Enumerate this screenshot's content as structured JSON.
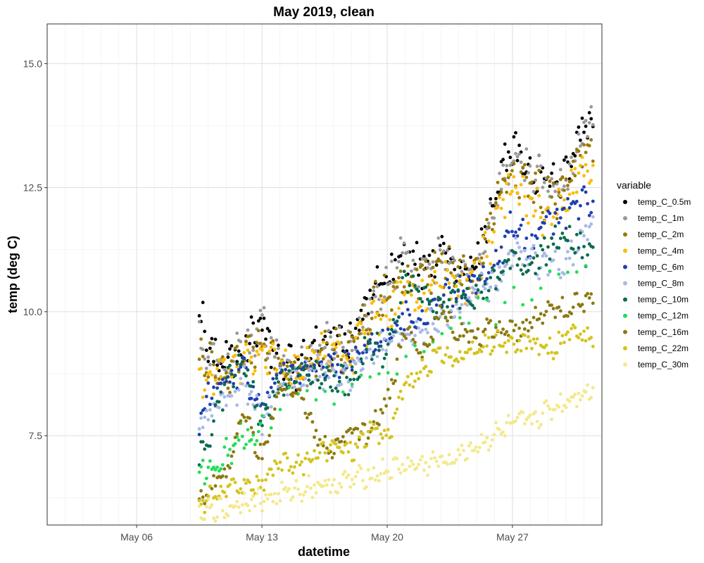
{
  "chart_data": {
    "type": "scatter",
    "title": "May 2019, clean",
    "xlabel": "datetime",
    "ylabel": "temp (deg C)",
    "xlim": [
      "2019-05-01",
      "2019-06-01"
    ],
    "ylim": [
      5.7,
      15.8
    ],
    "x_ticks": [
      "May 06",
      "May 13",
      "May 20",
      "May 27"
    ],
    "y_ticks": [
      "7.5",
      "10.0",
      "12.5",
      "15.0"
    ],
    "grid": true,
    "legend_title": "variable",
    "legend_position": "right",
    "x": [
      "2019-05-09",
      "2019-05-10",
      "2019-05-11",
      "2019-05-12",
      "2019-05-13",
      "2019-05-14",
      "2019-05-15",
      "2019-05-16",
      "2019-05-17",
      "2019-05-18",
      "2019-05-19",
      "2019-05-20",
      "2019-05-21",
      "2019-05-22",
      "2019-05-23",
      "2019-05-24",
      "2019-05-25",
      "2019-05-26",
      "2019-05-27",
      "2019-05-28",
      "2019-05-29",
      "2019-05-30",
      "2019-05-31"
    ],
    "series": [
      {
        "name": "temp_C_0.5m",
        "color": "#000000",
        "values": [
          11.0,
          9.2,
          9.0,
          9.3,
          9.8,
          8.9,
          8.9,
          9.3,
          9.5,
          9.4,
          10.3,
          10.7,
          11.2,
          10.9,
          11.2,
          10.9,
          10.9,
          12.5,
          13.2,
          12.9,
          12.6,
          12.7,
          13.9
        ]
      },
      {
        "name": "temp_C_1m",
        "color": "#999999",
        "values": [
          10.0,
          9.0,
          8.9,
          9.2,
          9.7,
          8.9,
          8.8,
          9.2,
          9.4,
          9.3,
          10.1,
          10.6,
          11.1,
          10.8,
          11.1,
          10.8,
          10.8,
          12.3,
          13.1,
          12.8,
          12.5,
          12.6,
          13.7
        ]
      },
      {
        "name": "temp_C_2m",
        "color": "#9a7a00",
        "values": [
          9.3,
          8.9,
          8.8,
          9.1,
          9.5,
          8.8,
          8.8,
          9.1,
          9.3,
          9.2,
          10.0,
          10.4,
          10.8,
          10.6,
          11.0,
          10.7,
          10.7,
          12.1,
          12.9,
          12.5,
          12.3,
          12.4,
          13.4
        ]
      },
      {
        "name": "temp_C_4m",
        "color": "#fbbc05",
        "values": [
          8.8,
          8.6,
          8.7,
          9.0,
          9.3,
          8.8,
          8.7,
          9.0,
          9.2,
          9.1,
          9.7,
          10.0,
          10.4,
          10.3,
          10.6,
          10.5,
          10.7,
          11.7,
          12.6,
          12.1,
          12.0,
          12.2,
          12.9
        ]
      },
      {
        "name": "temp_C_6m",
        "color": "#1f3fb0",
        "values": [
          7.3,
          8.3,
          8.5,
          8.8,
          8.1,
          8.7,
          8.7,
          8.9,
          9.0,
          9.0,
          9.4,
          9.5,
          9.9,
          9.9,
          10.3,
          10.4,
          10.6,
          10.8,
          11.9,
          11.3,
          11.8,
          12.0,
          12.3
        ]
      },
      {
        "name": "temp_C_8m",
        "color": "#a8b8e8",
        "values": [
          7.4,
          8.0,
          8.3,
          8.6,
          7.8,
          8.6,
          8.6,
          8.8,
          8.7,
          8.7,
          9.2,
          9.3,
          9.5,
          9.7,
          9.8,
          10.0,
          10.4,
          10.6,
          11.3,
          11.1,
          10.9,
          11.0,
          11.6
        ]
      },
      {
        "name": "temp_C_10m",
        "color": "#0b6b4f",
        "values": [
          6.9,
          7.4,
          8.6,
          9.0,
          7.7,
          8.6,
          8.8,
          8.8,
          8.6,
          8.6,
          9.4,
          9.1,
          10.6,
          10.4,
          10.0,
          10.4,
          10.4,
          10.6,
          11.1,
          10.9,
          11.3,
          11.5,
          11.2
        ]
      },
      {
        "name": "temp_C_12m",
        "color": "#22dd55",
        "values": [
          6.5,
          6.8,
          7.2,
          7.5,
          7.6,
          8.0,
          8.2,
          8.4,
          8.4,
          8.5,
          8.7,
          8.9,
          9.1,
          9.3,
          9.5,
          9.7,
          9.9,
          10.1,
          10.2,
          10.4,
          10.6,
          10.8,
          11.0
        ]
      },
      {
        "name": "temp_C_16m",
        "color": "#8a7a10",
        "values": [
          6.2,
          6.4,
          6.8,
          8.0,
          7.0,
          8.5,
          8.5,
          7.5,
          7.2,
          7.6,
          7.5,
          8.2,
          9.6,
          9.2,
          10.0,
          9.6,
          9.5,
          9.7,
          9.6,
          9.8,
          10.1,
          10.0,
          10.2
        ]
      },
      {
        "name": "temp_C_22m",
        "color": "#d4c41e",
        "values": [
          6.1,
          6.2,
          6.4,
          6.6,
          6.5,
          6.9,
          6.9,
          7.1,
          7.3,
          7.2,
          7.6,
          7.5,
          8.5,
          8.8,
          9.2,
          9.0,
          9.2,
          9.4,
          9.3,
          9.4,
          9.2,
          9.5,
          9.5
        ]
      },
      {
        "name": "temp_C_30m",
        "color": "#f3e98a",
        "values": [
          5.9,
          6.0,
          6.0,
          6.2,
          6.2,
          6.3,
          6.4,
          6.5,
          6.5,
          6.6,
          6.7,
          6.8,
          6.9,
          6.9,
          7.0,
          7.1,
          7.3,
          7.5,
          7.7,
          7.8,
          8.0,
          8.2,
          8.4
        ]
      }
    ]
  }
}
